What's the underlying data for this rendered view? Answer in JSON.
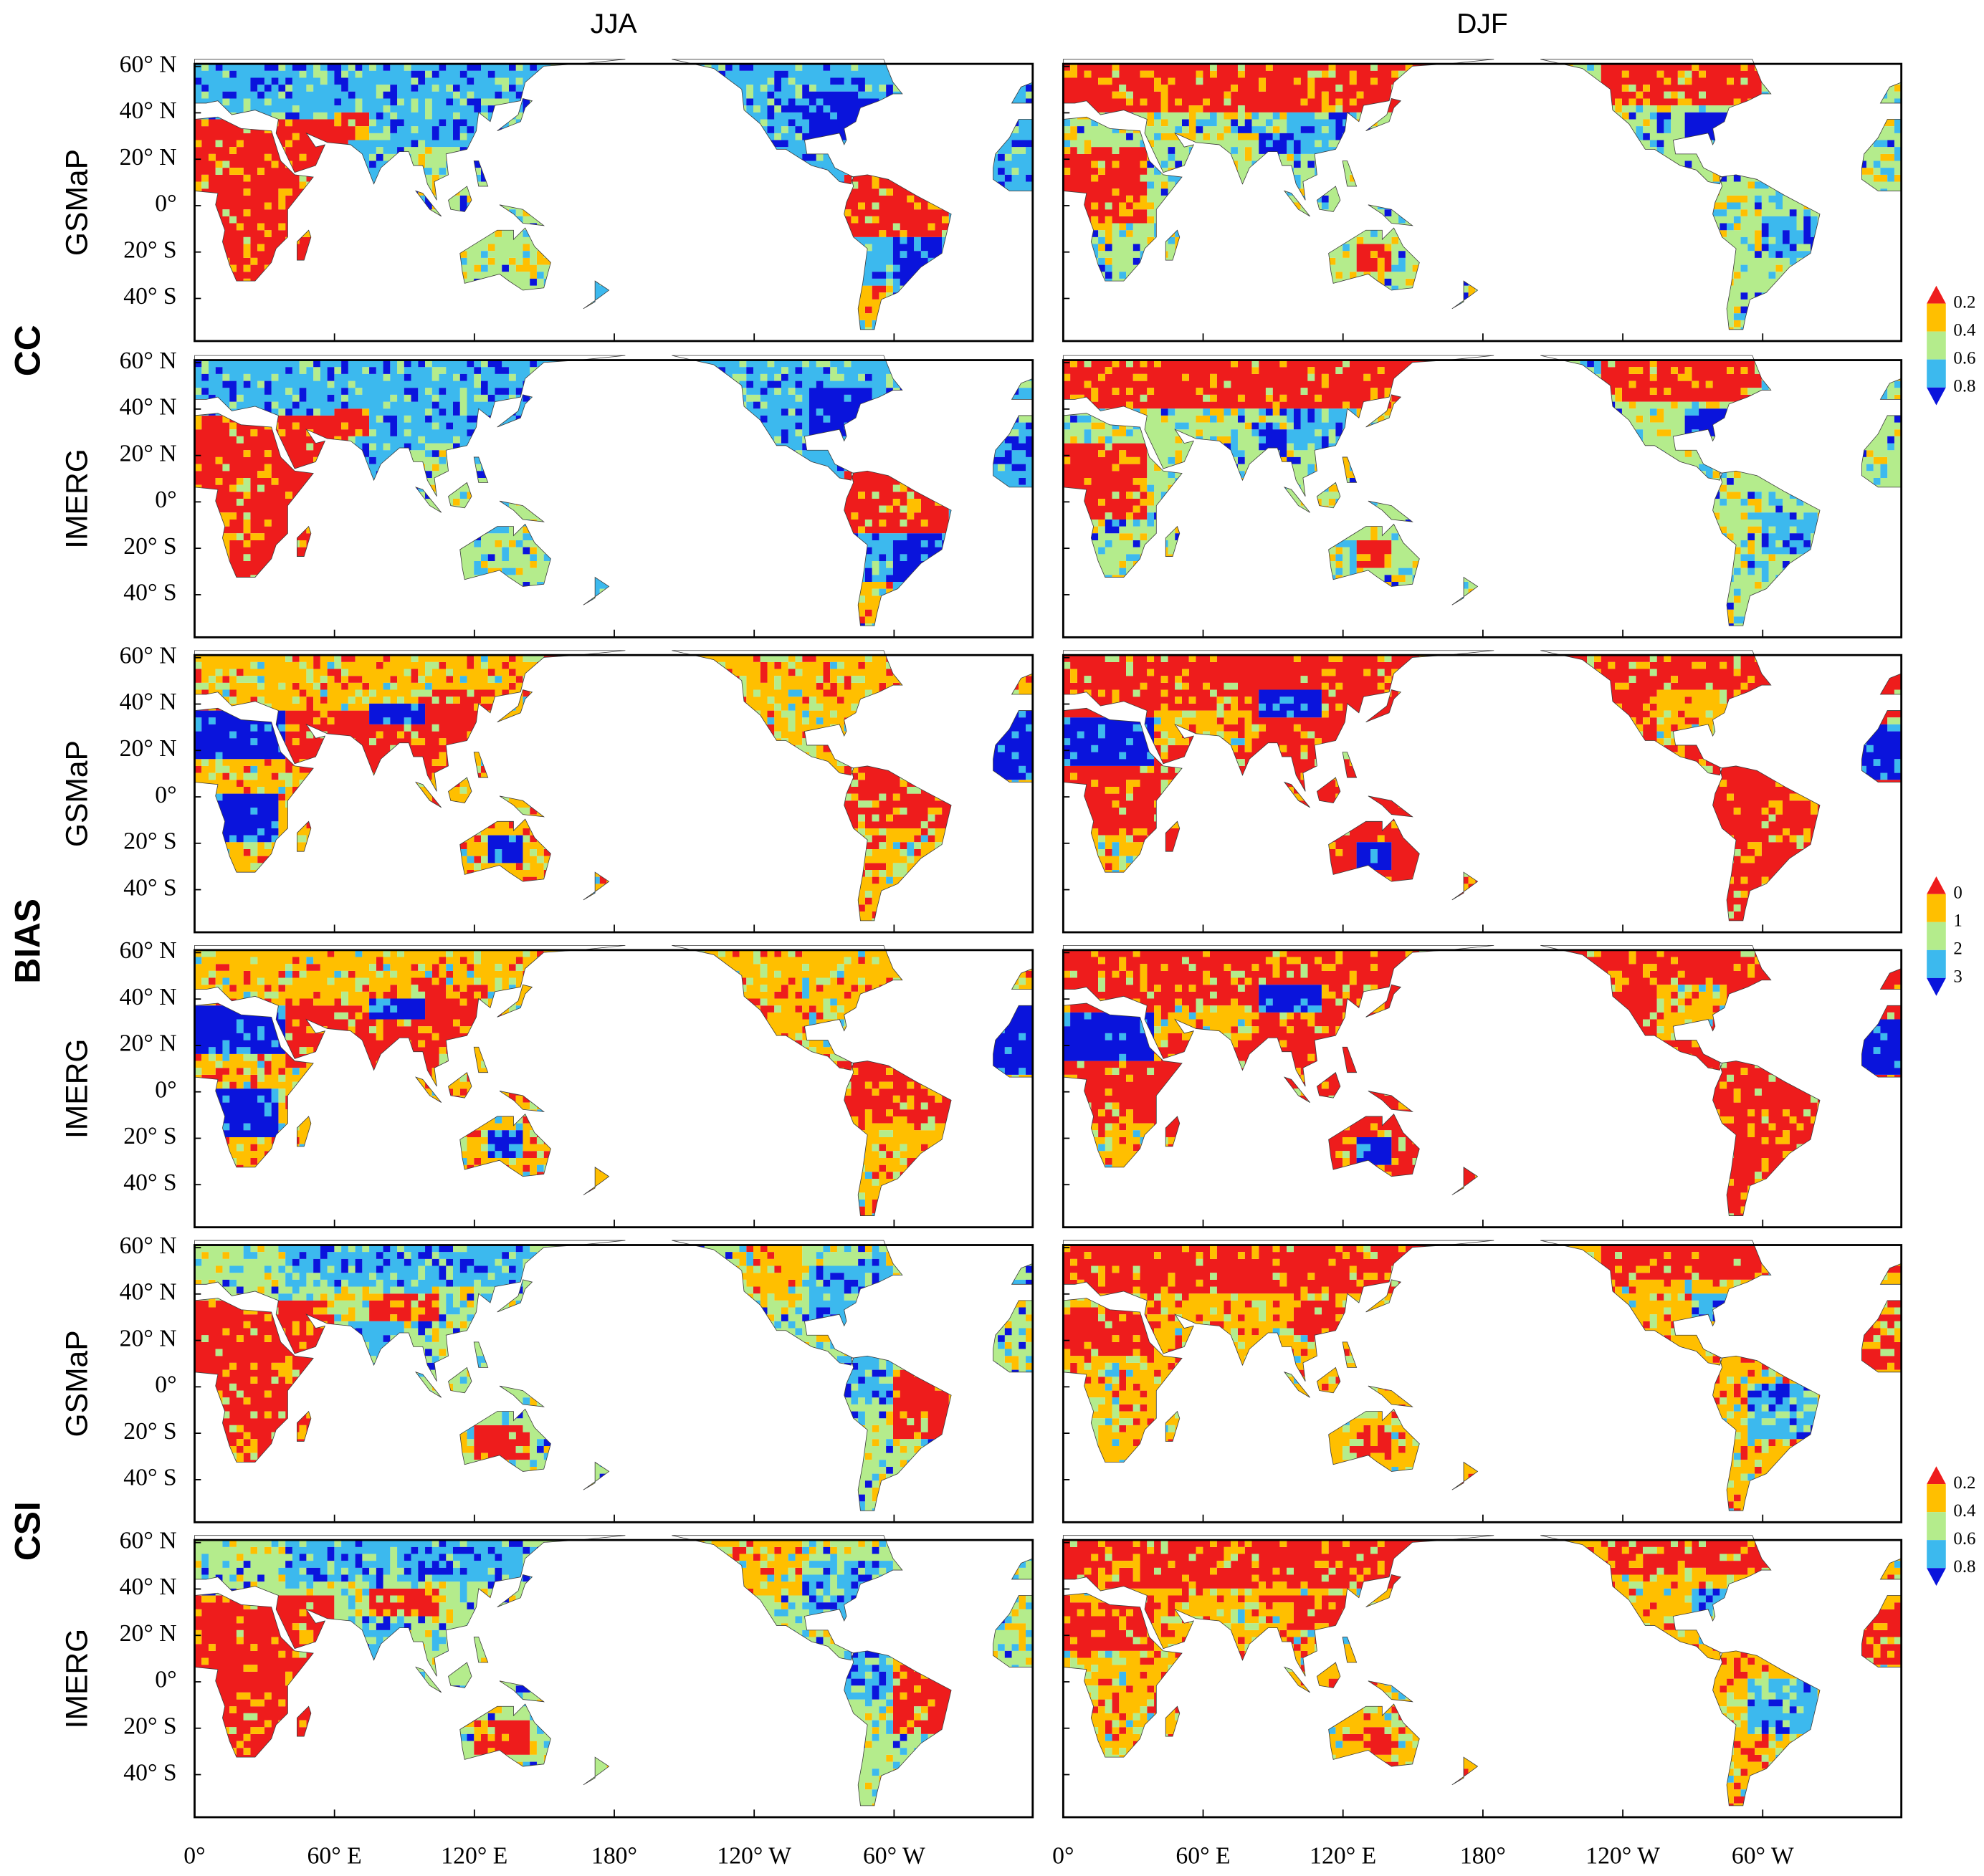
{
  "columns": [
    "JJA",
    "DJF"
  ],
  "metrics": [
    {
      "label": "CC",
      "rows": [
        "GSMaP",
        "IMERG"
      ],
      "colorbar_ticks": [
        0.2,
        0.4,
        0.6,
        0.8
      ]
    },
    {
      "label": "BIAS",
      "rows": [
        "GSMaP",
        "IMERG"
      ],
      "colorbar_ticks": [
        0,
        1,
        2,
        3
      ]
    },
    {
      "label": "CSI",
      "rows": [
        "GSMaP",
        "IMERG"
      ],
      "colorbar_ticks": [
        0.2,
        0.4,
        0.6,
        0.8
      ]
    }
  ],
  "lat_ticks": [
    "60° N",
    "40° N",
    "20° N",
    "0°",
    "20° S",
    "40° S"
  ],
  "lon_ticks": [
    "0°",
    "60° E",
    "120° E",
    "180°",
    "120° W",
    "60° W"
  ],
  "palette": [
    "#ee1c1c",
    "#ffbf00",
    "#b4ec8c",
    "#3cb9ee",
    "#0a14dc"
  ]
}
